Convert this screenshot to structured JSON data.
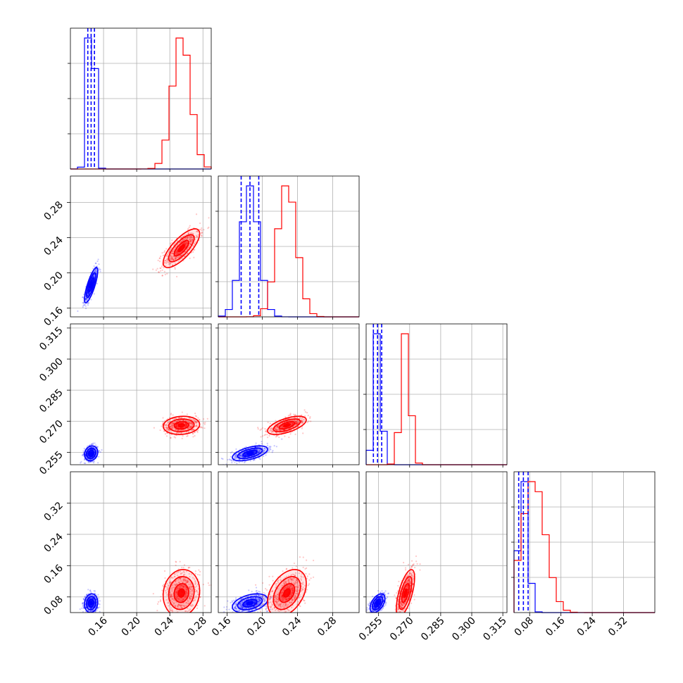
{
  "chart_data": {
    "type": "scatter",
    "kind": "corner plot",
    "parameters": 4,
    "series_colors": [
      "#0000ff",
      "#ff0000"
    ],
    "grid": true,
    "quantile_lines": "dashed, blue series",
    "axes": [
      {
        "range": [
          0.12,
          0.29
        ],
        "ticks": [
          0.16,
          0.2,
          0.24,
          0.28
        ],
        "tick_labels": [
          "0.16",
          "0.20",
          "0.24",
          "0.28"
        ]
      },
      {
        "range": [
          0.15,
          0.31
        ],
        "ticks": [
          0.16,
          0.2,
          0.24,
          0.28
        ],
        "tick_labels": [
          "0.16",
          "0.20",
          "0.24",
          "0.28"
        ]
      },
      {
        "range": [
          0.249,
          0.317
        ],
        "ticks": [
          0.255,
          0.27,
          0.285,
          0.3,
          0.315
        ],
        "tick_labels": [
          "0.255",
          "0.270",
          "0.285",
          "0.300",
          "0.315"
        ]
      },
      {
        "range": [
          0.04,
          0.4
        ],
        "ticks": [
          0.08,
          0.16,
          0.24,
          0.32
        ],
        "tick_labels": [
          "0.08",
          "0.16",
          "0.24",
          "0.32"
        ]
      }
    ],
    "marginals": [
      {
        "param": 0,
        "blue": {
          "mean": 0.145,
          "sd": 0.004,
          "quantiles": [
            0.141,
            0.145,
            0.149
          ]
        },
        "red": {
          "mean": 0.254,
          "sd": 0.011
        }
      },
      {
        "param": 1,
        "blue": {
          "mean": 0.186,
          "sd": 0.01,
          "quantiles": [
            0.176,
            0.186,
            0.196
          ]
        },
        "red": {
          "mean": 0.228,
          "sd": 0.011
        }
      },
      {
        "param": 2,
        "blue": {
          "mean": 0.2545,
          "sd": 0.0018,
          "quantiles": [
            0.2525,
            0.2545,
            0.2565
          ]
        },
        "red": {
          "mean": 0.268,
          "sd": 0.0022
        }
      },
      {
        "param": 3,
        "blue": {
          "mean": 0.064,
          "sd": 0.012,
          "quantiles": [
            0.052,
            0.064,
            0.076
          ]
        },
        "red": {
          "mean": 0.09,
          "sd": 0.03
        }
      }
    ],
    "pairs": [
      {
        "x": 0,
        "y": 1,
        "blue": {
          "center": [
            0.145,
            0.186
          ],
          "corr": 0.8
        },
        "red": {
          "center": [
            0.254,
            0.228
          ],
          "corr": 0.75
        }
      },
      {
        "x": 0,
        "y": 2,
        "blue": {
          "center": [
            0.145,
            0.2545
          ],
          "corr": 0.15
        },
        "red": {
          "center": [
            0.254,
            0.268
          ],
          "corr": 0.1
        }
      },
      {
        "x": 1,
        "y": 2,
        "blue": {
          "center": [
            0.186,
            0.2545
          ],
          "corr": 0.55
        },
        "red": {
          "center": [
            0.228,
            0.268
          ],
          "corr": 0.6
        }
      },
      {
        "x": 0,
        "y": 3,
        "blue": {
          "center": [
            0.145,
            0.064
          ],
          "corr": 0.1
        },
        "red": {
          "center": [
            0.254,
            0.09
          ],
          "corr": 0.1
        }
      },
      {
        "x": 1,
        "y": 3,
        "blue": {
          "center": [
            0.186,
            0.064
          ],
          "corr": 0.4
        },
        "red": {
          "center": [
            0.228,
            0.09
          ],
          "corr": 0.4
        }
      },
      {
        "x": 2,
        "y": 3,
        "blue": {
          "center": [
            0.2545,
            0.064
          ],
          "corr": 0.5
        },
        "red": {
          "center": [
            0.268,
            0.09
          ],
          "corr": 0.65
        }
      }
    ]
  }
}
